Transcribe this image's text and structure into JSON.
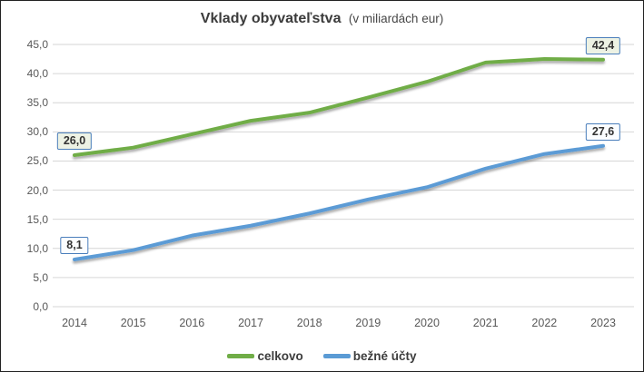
{
  "window": {
    "background": "#ffffff",
    "frame_border_color": "#222222",
    "gridline_color": "#d6d6d6",
    "axis_text_color": "#595959",
    "title_color": "#3b3b3b"
  },
  "chart_data": {
    "type": "line",
    "title": "Vklady obyvateľstva",
    "subtitle": "(v miliardách eur)",
    "categories": [
      "2014",
      "2015",
      "2016",
      "2017",
      "2018",
      "2019",
      "2020",
      "2021",
      "2022",
      "2023"
    ],
    "series": [
      {
        "name": "celkovo",
        "color": "#70ad47",
        "values": [
          26.0,
          27.3,
          29.6,
          31.9,
          33.3,
          35.9,
          38.6,
          41.9,
          42.5,
          42.4
        ],
        "first_label": "26,0",
        "last_label": "42,4",
        "label_bg": "#edf2e4",
        "label_border": "#4a7ebb"
      },
      {
        "name": "bežné účty",
        "color": "#5b9bd5",
        "values": [
          8.1,
          9.7,
          12.2,
          13.9,
          16.0,
          18.4,
          20.5,
          23.7,
          26.2,
          27.6
        ],
        "first_label": "8,1",
        "last_label": "27,6",
        "label_bg": "#fbfdff",
        "label_border": "#4a7ebb"
      }
    ],
    "ylim": [
      0,
      45
    ],
    "ytick_step": 5,
    "ytick_labels": [
      "0,0",
      "5,0",
      "10,0",
      "15,0",
      "20,0",
      "25,0",
      "30,0",
      "35,0",
      "40,0",
      "45,0"
    ],
    "grid": true,
    "legend_position": "bottom"
  }
}
